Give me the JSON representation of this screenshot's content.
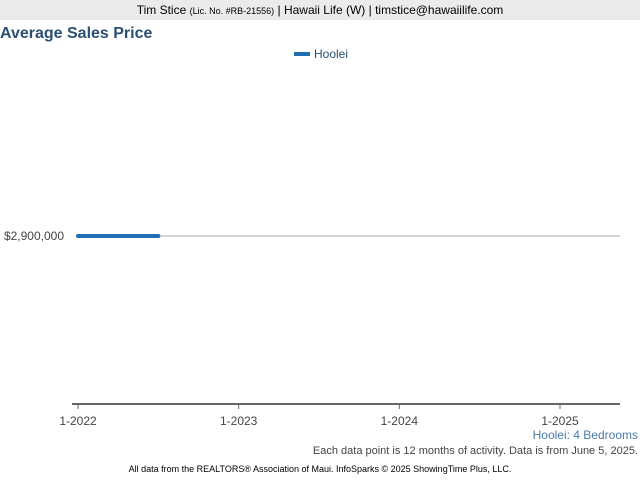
{
  "header": {
    "agent_name": "Tim Stice",
    "license": "(Lic. No. #RB-21556)",
    "rest": "| Hawaii Life (W) | timstice@hawaiilife.com"
  },
  "chart_data": {
    "type": "line",
    "title": "Average Sales Price",
    "xlabel": "",
    "ylabel": "",
    "x_ticks": [
      "1-2022",
      "1-2023",
      "1-2024",
      "1-2025"
    ],
    "x_range": [
      "2022-01",
      "2025-06"
    ],
    "y_ticks": [
      {
        "value": 2900000,
        "label": "$2,900,000"
      }
    ],
    "legend_position": "top-center",
    "series": [
      {
        "name": "Hoolei",
        "color": "#1f6fb2",
        "points": [
          {
            "x": "2022-01",
            "y": 2900000
          },
          {
            "x": "2022-07",
            "y": 2900000
          }
        ]
      }
    ]
  },
  "subtitle": "Hoolei: 4 Bedrooms",
  "footnote": "Each data point is 12 months of activity. Data is from June 5, 2025.",
  "source": "All data from the REALTORS® Association of Maui. InfoSparks © 2025 ShowingTime Plus, LLC."
}
